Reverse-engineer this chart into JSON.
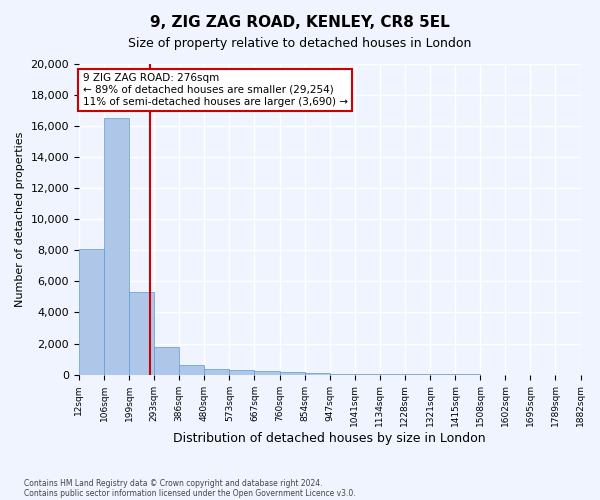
{
  "title1": "9, ZIG ZAG ROAD, KENLEY, CR8 5EL",
  "title2": "Size of property relative to detached houses in London",
  "xlabel": "Distribution of detached houses by size in London",
  "ylabel": "Number of detached properties",
  "bar_color": "#aec6e8",
  "bar_edge_color": "#5b9bd5",
  "categories": [
    "12sqm",
    "106sqm",
    "199sqm",
    "293sqm",
    "386sqm",
    "480sqm",
    "573sqm",
    "667sqm",
    "760sqm",
    "854sqm",
    "947sqm",
    "1041sqm",
    "1134sqm",
    "1228sqm",
    "1321sqm",
    "1415sqm",
    "1508sqm",
    "1602sqm",
    "1695sqm",
    "1789sqm",
    "1882sqm"
  ],
  "values": [
    8100,
    16500,
    5300,
    1800,
    650,
    350,
    280,
    200,
    180,
    100,
    60,
    40,
    25,
    15,
    10,
    8,
    5,
    4,
    3,
    2
  ],
  "ylim": [
    0,
    20000
  ],
  "yticks": [
    0,
    2000,
    4000,
    6000,
    8000,
    10000,
    12000,
    14000,
    16000,
    18000,
    20000
  ],
  "annotation_text": "9 ZIG ZAG ROAD: 276sqm\n← 89% of detached houses are smaller (29,254)\n11% of semi-detached houses are larger (3,690) →",
  "annotation_box_color": "#ffffff",
  "annotation_box_edge": "#cc0000",
  "footnote1": "Contains HM Land Registry data © Crown copyright and database right 2024.",
  "footnote2": "Contains public sector information licensed under the Open Government Licence v3.0.",
  "background_color": "#f0f4ff",
  "grid_color": "#ffffff",
  "red_line_color": "#cc0000",
  "bin_edges": [
    12,
    106,
    199,
    293,
    386,
    480,
    573,
    667,
    760,
    854,
    947,
    1041,
    1134,
    1228,
    1321,
    1415,
    1508,
    1602,
    1695,
    1789,
    1882
  ],
  "property_size": 276
}
